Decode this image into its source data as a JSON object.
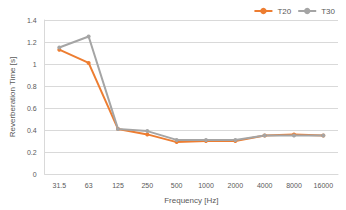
{
  "chart_data": {
    "type": "line",
    "x_label": "Frequency [Hz]",
    "y_label": "Reverberation Time [s]",
    "categories": [
      "31.5",
      "63",
      "125",
      "250",
      "500",
      "1000",
      "2000",
      "4000",
      "8000",
      "16000"
    ],
    "series": [
      {
        "name": "T20",
        "color": "#ed7d31",
        "marker": "circle",
        "values": [
          1.13,
          1.01,
          0.41,
          0.36,
          0.29,
          0.3,
          0.3,
          0.35,
          0.36,
          0.35
        ]
      },
      {
        "name": "T30",
        "color": "#a5a5a5",
        "marker": "circle",
        "values": [
          1.15,
          1.25,
          0.41,
          0.39,
          0.31,
          0.31,
          0.31,
          0.35,
          0.35,
          0.35
        ]
      }
    ],
    "ylim": [
      0,
      1.4
    ],
    "yticks": [
      0,
      0.2,
      0.4,
      0.6,
      0.8,
      1,
      1.2,
      1.4
    ],
    "grid": true,
    "legend": "upper right"
  }
}
